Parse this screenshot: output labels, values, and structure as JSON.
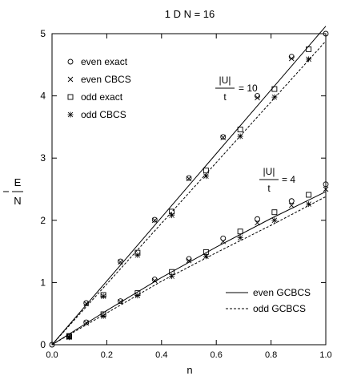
{
  "chart_data": {
    "type": "line",
    "title": "1 D   N = 16",
    "xlabel": "n",
    "ylabel": "- E / N",
    "xlim": [
      0,
      1
    ],
    "ylim": [
      0,
      5
    ],
    "xticks": [
      "0.0",
      "0.2",
      "0.4",
      "0.6",
      "0.8",
      "1.0"
    ],
    "yticks": [
      "0",
      "1",
      "2",
      "3",
      "4",
      "5"
    ],
    "grid": false,
    "legend_position": "top-left and bottom-right",
    "annotations": [
      {
        "label_num": "|U|",
        "label_den": "t",
        "label_val": "= 10"
      },
      {
        "label_num": "|U|",
        "label_den": "t",
        "label_val": "= 4"
      }
    ],
    "legend_markers": [
      {
        "label": "even exact",
        "marker": "circle"
      },
      {
        "label": "even CBCS",
        "marker": "x"
      },
      {
        "label": "odd exact",
        "marker": "square"
      },
      {
        "label": "odd CBCS",
        "marker": "asterisk"
      }
    ],
    "legend_lines": [
      {
        "label": "even GCBCS",
        "style": "solid"
      },
      {
        "label": "odd GCBCS",
        "style": "dashed"
      }
    ],
    "series": [
      {
        "name": "even exact",
        "marker": "circle",
        "group": "U10",
        "x": [
          0.125,
          0.25,
          0.375,
          0.5,
          0.625,
          0.75,
          0.875,
          1.0
        ],
        "y": [
          0.67,
          1.34,
          2.01,
          2.68,
          3.34,
          4.0,
          4.63,
          5.0
        ]
      },
      {
        "name": "even CBCS",
        "marker": "x",
        "group": "U10",
        "x": [
          0.125,
          0.25,
          0.375,
          0.5,
          0.625,
          0.75,
          0.875
        ],
        "y": [
          0.66,
          1.33,
          2.0,
          2.67,
          3.33,
          3.97,
          4.6
        ]
      },
      {
        "name": "odd exact",
        "marker": "square",
        "group": "U10",
        "x": [
          0.0625,
          0.1875,
          0.3125,
          0.4375,
          0.5625,
          0.6875,
          0.8125,
          0.9375
        ],
        "y": [
          0.14,
          0.8,
          1.48,
          2.14,
          2.8,
          3.46,
          4.11,
          4.75
        ]
      },
      {
        "name": "odd CBCS",
        "marker": "asterisk",
        "group": "U10",
        "x": [
          0.0625,
          0.1875,
          0.3125,
          0.4375,
          0.5625,
          0.6875,
          0.8125,
          0.9375
        ],
        "y": [
          0.13,
          0.78,
          1.44,
          2.08,
          2.71,
          3.35,
          3.98,
          4.59
        ]
      },
      {
        "name": "even exact",
        "marker": "circle",
        "group": "U4",
        "x": [
          0.0,
          0.125,
          0.25,
          0.375,
          0.5,
          0.625,
          0.75,
          0.875,
          1.0
        ],
        "y": [
          0.0,
          0.36,
          0.7,
          1.05,
          1.38,
          1.71,
          2.02,
          2.31,
          2.58
        ]
      },
      {
        "name": "even CBCS",
        "marker": "x",
        "group": "U4",
        "x": [
          0.125,
          0.25,
          0.375,
          0.5,
          0.625,
          0.75,
          0.875,
          1.0
        ],
        "y": [
          0.35,
          0.69,
          1.03,
          1.35,
          1.66,
          1.96,
          2.24,
          2.5
        ]
      },
      {
        "name": "odd exact",
        "marker": "square",
        "group": "U4",
        "x": [
          0.0625,
          0.1875,
          0.3125,
          0.4375,
          0.5625,
          0.6875,
          0.8125,
          0.9375
        ],
        "y": [
          0.13,
          0.49,
          0.83,
          1.17,
          1.49,
          1.82,
          2.13,
          2.41
        ]
      },
      {
        "name": "odd CBCS",
        "marker": "asterisk",
        "group": "U4",
        "x": [
          0.0625,
          0.1875,
          0.3125,
          0.4375,
          0.5625,
          0.6875,
          0.8125,
          0.9375
        ],
        "y": [
          0.12,
          0.46,
          0.79,
          1.1,
          1.42,
          1.72,
          2.0,
          2.26
        ]
      },
      {
        "name": "even GCBCS",
        "line": "solid",
        "group": "U10",
        "x": [
          0.0,
          1.0
        ],
        "y": [
          0.0,
          5.12
        ]
      },
      {
        "name": "odd GCBCS",
        "line": "dashed",
        "group": "U10",
        "x": [
          0.0,
          1.0
        ],
        "y": [
          0.0,
          4.88
        ]
      },
      {
        "name": "even GCBCS",
        "line": "solid",
        "group": "U4",
        "x": [
          0.0,
          0.2,
          0.4,
          0.6,
          0.8,
          1.0
        ],
        "y": [
          0.0,
          0.55,
          1.08,
          1.57,
          2.03,
          2.46
        ]
      },
      {
        "name": "odd GCBCS",
        "line": "dashed",
        "group": "U4",
        "x": [
          0.0,
          0.2,
          0.4,
          0.6,
          0.8,
          1.0
        ],
        "y": [
          0.0,
          0.51,
          1.02,
          1.48,
          1.92,
          2.38
        ]
      }
    ]
  }
}
